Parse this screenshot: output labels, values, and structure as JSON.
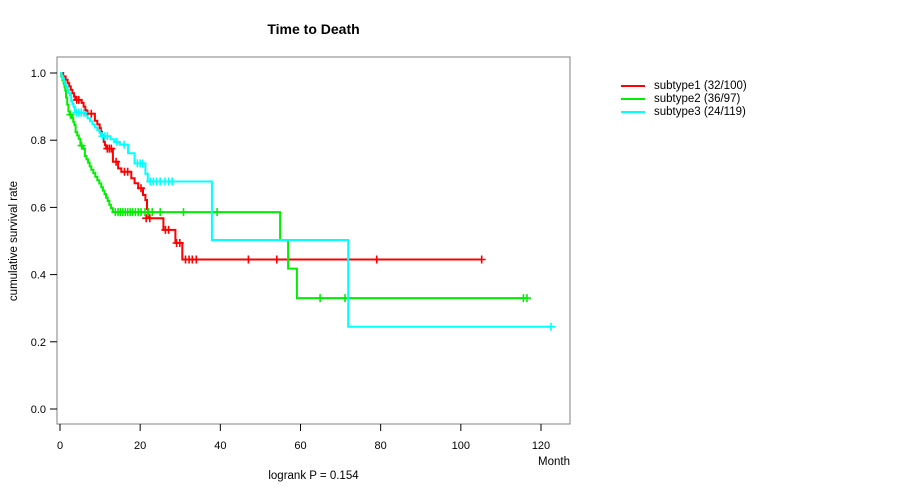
{
  "chart": {
    "title": "Time to Death",
    "y_axis_label": "cumulative survival rate",
    "x_axis_label": "Month",
    "footnote": "logrank P = 0.154"
  },
  "legend": {
    "items": [
      {
        "label": "subtype1 (32/100)",
        "color": "#ff0000"
      },
      {
        "label": "subtype2 (36/97)",
        "color": "#00ee00"
      },
      {
        "label": "subtype3 (24/119)",
        "color": "#00ffff"
      }
    ]
  },
  "chart_data": {
    "type": "line",
    "variant": "kaplan-meier-step",
    "title": "Time to Death",
    "xlabel": "Month",
    "ylabel": "cumulative survival rate",
    "xlim": [
      0,
      127
    ],
    "ylim": [
      0,
      1.0
    ],
    "x_ticks": [
      0,
      20,
      40,
      60,
      80,
      100,
      120
    ],
    "y_ticks": [
      0.0,
      0.2,
      0.4,
      0.6,
      0.8,
      1.0
    ],
    "grid": false,
    "legend_position": "right-outside",
    "annotation": "logrank P = 0.154",
    "series": [
      {
        "name": "subtype1 (32/100)",
        "events": 32,
        "n": 100,
        "color": "#ff0000",
        "steps": [
          [
            0,
            1.0
          ],
          [
            0.8,
            0.99
          ],
          [
            1.4,
            0.98
          ],
          [
            1.9,
            0.97
          ],
          [
            2.3,
            0.96
          ],
          [
            2.7,
            0.95
          ],
          [
            3.1,
            0.94
          ],
          [
            3.5,
            0.93
          ],
          [
            3.8,
            0.92
          ],
          [
            5.4,
            0.911
          ],
          [
            5.9,
            0.9
          ],
          [
            6.3,
            0.89
          ],
          [
            6.6,
            0.879
          ],
          [
            8.7,
            0.858
          ],
          [
            9.3,
            0.847
          ],
          [
            9.9,
            0.836
          ],
          [
            10.2,
            0.825
          ],
          [
            10.5,
            0.814
          ],
          [
            10.9,
            0.795
          ],
          [
            11.2,
            0.785
          ],
          [
            11.5,
            0.775
          ],
          [
            13.2,
            0.736
          ],
          [
            14.5,
            0.716
          ],
          [
            15.3,
            0.706
          ],
          [
            17.8,
            0.687
          ],
          [
            18.6,
            0.672
          ],
          [
            19.5,
            0.657
          ],
          [
            20.7,
            0.637
          ],
          [
            21.3,
            0.622
          ],
          [
            21.7,
            0.595
          ],
          [
            22.0,
            0.568
          ],
          [
            25.8,
            0.533
          ],
          [
            28.8,
            0.494
          ],
          [
            30.5,
            0.445
          ],
          [
            105.2,
            0.445
          ]
        ],
        "censor_marks": [
          [
            4.2,
            0.92
          ],
          [
            4.7,
            0.92
          ],
          [
            6.9,
            0.879
          ],
          [
            7.8,
            0.879
          ],
          [
            11.8,
            0.775
          ],
          [
            12.3,
            0.775
          ],
          [
            12.8,
            0.775
          ],
          [
            14.0,
            0.736
          ],
          [
            16.1,
            0.706
          ],
          [
            16.9,
            0.706
          ],
          [
            20.2,
            0.657
          ],
          [
            21.5,
            0.568
          ],
          [
            22.4,
            0.568
          ],
          [
            26.3,
            0.533
          ],
          [
            27.1,
            0.533
          ],
          [
            29.1,
            0.494
          ],
          [
            29.9,
            0.494
          ],
          [
            31.3,
            0.445
          ],
          [
            32.2,
            0.445
          ],
          [
            33.0,
            0.445
          ],
          [
            34.0,
            0.445
          ],
          [
            47.0,
            0.445
          ],
          [
            54.1,
            0.445
          ],
          [
            79.0,
            0.445
          ],
          [
            105.2,
            0.445
          ]
        ]
      },
      {
        "name": "subtype2 (36/97)",
        "events": 36,
        "n": 97,
        "color": "#00ee00",
        "steps": [
          [
            0,
            1.0
          ],
          [
            0.3,
            0.99
          ],
          [
            0.6,
            0.979
          ],
          [
            0.9,
            0.969
          ],
          [
            1.1,
            0.959
          ],
          [
            1.3,
            0.948
          ],
          [
            1.5,
            0.927
          ],
          [
            1.8,
            0.906
          ],
          [
            2.1,
            0.886
          ],
          [
            2.4,
            0.876
          ],
          [
            3.0,
            0.866
          ],
          [
            3.3,
            0.855
          ],
          [
            3.6,
            0.845
          ],
          [
            3.9,
            0.824
          ],
          [
            4.3,
            0.814
          ],
          [
            4.7,
            0.804
          ],
          [
            5.1,
            0.784
          ],
          [
            5.8,
            0.774
          ],
          [
            6.2,
            0.753
          ],
          [
            6.6,
            0.743
          ],
          [
            7.0,
            0.733
          ],
          [
            7.4,
            0.722
          ],
          [
            7.8,
            0.712
          ],
          [
            8.3,
            0.702
          ],
          [
            8.8,
            0.691
          ],
          [
            9.3,
            0.681
          ],
          [
            9.8,
            0.671
          ],
          [
            10.3,
            0.66
          ],
          [
            10.7,
            0.65
          ],
          [
            11.1,
            0.64
          ],
          [
            11.5,
            0.629
          ],
          [
            11.9,
            0.619
          ],
          [
            12.3,
            0.608
          ],
          [
            12.7,
            0.598
          ],
          [
            13.2,
            0.586
          ],
          [
            54.9,
            0.502
          ],
          [
            56.9,
            0.418
          ],
          [
            59.1,
            0.33
          ],
          [
            116.5,
            0.33
          ]
        ],
        "censor_marks": [
          [
            2.6,
            0.876
          ],
          [
            5.4,
            0.784
          ],
          [
            13.8,
            0.586
          ],
          [
            14.5,
            0.586
          ],
          [
            15.1,
            0.586
          ],
          [
            15.7,
            0.586
          ],
          [
            16.3,
            0.586
          ],
          [
            16.9,
            0.586
          ],
          [
            17.5,
            0.586
          ],
          [
            18.1,
            0.586
          ],
          [
            18.8,
            0.586
          ],
          [
            19.5,
            0.586
          ],
          [
            20.2,
            0.586
          ],
          [
            21.2,
            0.586
          ],
          [
            22.0,
            0.586
          ],
          [
            23.0,
            0.586
          ],
          [
            25.0,
            0.586
          ],
          [
            30.8,
            0.586
          ],
          [
            39.2,
            0.586
          ],
          [
            64.9,
            0.33
          ],
          [
            71.1,
            0.33
          ],
          [
            115.6,
            0.33
          ],
          [
            116.5,
            0.33
          ]
        ]
      },
      {
        "name": "subtype3 (24/119)",
        "events": 24,
        "n": 119,
        "color": "#00ffff",
        "steps": [
          [
            0,
            1.0
          ],
          [
            0.4,
            0.992
          ],
          [
            0.7,
            0.983
          ],
          [
            1.0,
            0.975
          ],
          [
            1.3,
            0.966
          ],
          [
            1.6,
            0.958
          ],
          [
            1.9,
            0.95
          ],
          [
            2.2,
            0.941
          ],
          [
            2.5,
            0.933
          ],
          [
            2.8,
            0.916
          ],
          [
            3.1,
            0.908
          ],
          [
            3.4,
            0.899
          ],
          [
            3.7,
            0.882
          ],
          [
            6.4,
            0.873
          ],
          [
            6.9,
            0.865
          ],
          [
            7.5,
            0.856
          ],
          [
            8.1,
            0.847
          ],
          [
            8.7,
            0.838
          ],
          [
            9.3,
            0.83
          ],
          [
            9.9,
            0.821
          ],
          [
            10.2,
            0.812
          ],
          [
            12.6,
            0.803
          ],
          [
            13.6,
            0.795
          ],
          [
            14.9,
            0.787
          ],
          [
            17.0,
            0.761
          ],
          [
            18.6,
            0.731
          ],
          [
            21.3,
            0.7
          ],
          [
            21.9,
            0.677
          ],
          [
            37.9,
            0.503
          ],
          [
            71.9,
            0.245
          ],
          [
            122.5,
            0.245
          ]
        ],
        "censor_marks": [
          [
            4.1,
            0.882
          ],
          [
            4.7,
            0.882
          ],
          [
            5.3,
            0.882
          ],
          [
            5.9,
            0.882
          ],
          [
            10.6,
            0.812
          ],
          [
            11.2,
            0.812
          ],
          [
            11.8,
            0.812
          ],
          [
            14.2,
            0.795
          ],
          [
            16.0,
            0.787
          ],
          [
            19.3,
            0.731
          ],
          [
            20.0,
            0.731
          ],
          [
            20.6,
            0.731
          ],
          [
            22.5,
            0.677
          ],
          [
            23.3,
            0.677
          ],
          [
            24.1,
            0.677
          ],
          [
            25.0,
            0.677
          ],
          [
            26.2,
            0.677
          ],
          [
            27.1,
            0.677
          ],
          [
            28.0,
            0.677
          ],
          [
            122.5,
            0.245
          ]
        ]
      }
    ]
  }
}
